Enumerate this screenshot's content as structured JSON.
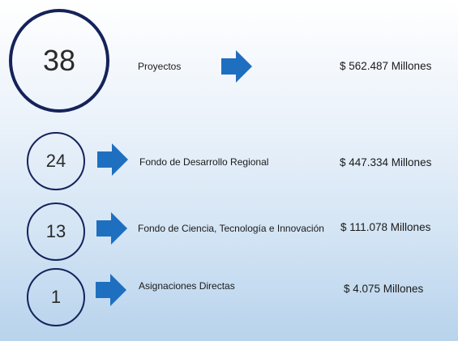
{
  "rows": [
    {
      "count": "38",
      "label": "Proyectos",
      "amount": "$ 562.487 Millones"
    },
    {
      "count": "24",
      "label": "Fondo de Desarrollo Regional",
      "amount": "$ 447.334 Millones"
    },
    {
      "count": "13",
      "label": "Fondo de Ciencia, Tecnología e Innovación",
      "amount": "$ 111.078 Millones"
    },
    {
      "count": "1",
      "label": "Asignaciones Directas",
      "amount": "$ 4.075 Millones"
    }
  ],
  "colors": {
    "circle_border": "#14235a",
    "arrow_fill": "#1f6fc0"
  },
  "icons": {
    "arrow": "arrow-right-icon"
  }
}
